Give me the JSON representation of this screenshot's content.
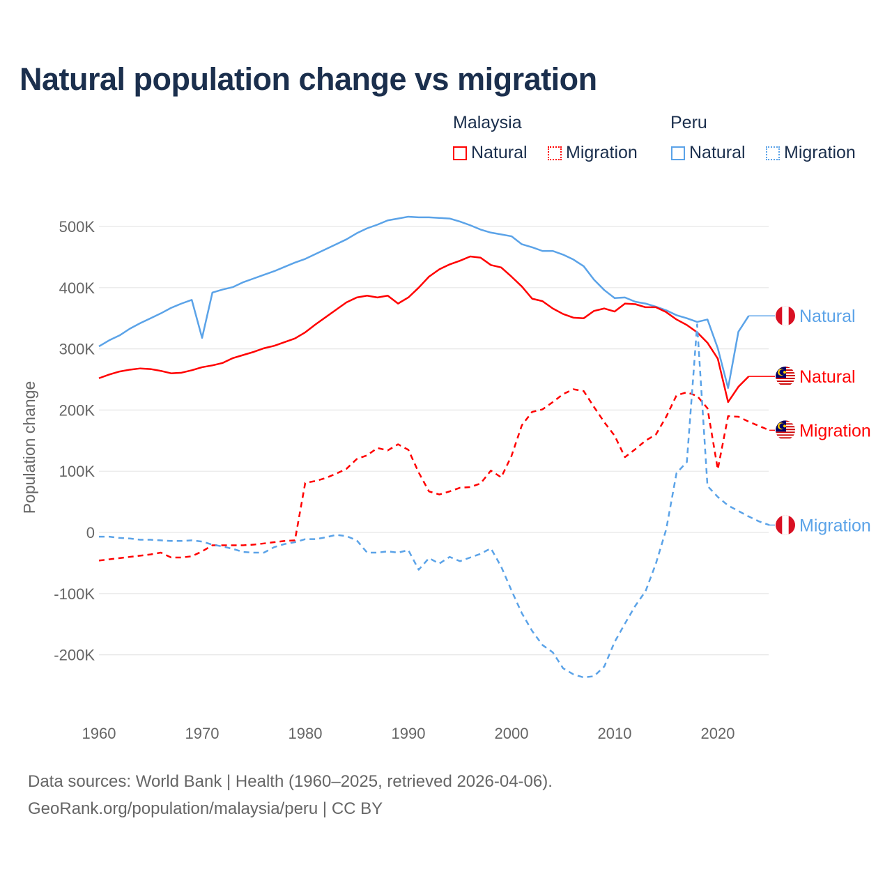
{
  "title": "Natural population change vs migration",
  "legend": {
    "groups": [
      {
        "name": "Malaysia",
        "items": [
          {
            "label": "Natural",
            "style": "solid",
            "color": "#ff0000"
          },
          {
            "label": "Migration",
            "style": "dotted",
            "color": "#ff0000"
          }
        ]
      },
      {
        "name": "Peru",
        "items": [
          {
            "label": "Natural",
            "style": "solid",
            "color": "#5ba3e8"
          },
          {
            "label": "Migration",
            "style": "dotted",
            "color": "#5ba3e8"
          }
        ]
      }
    ]
  },
  "footer": {
    "line1": "Data sources: World Bank | Health (1960–2025, retrieved 2026-04-06).",
    "line2": "GeoRank.org/population/malaysia/peru | CC BY"
  },
  "chart_data": {
    "type": "line",
    "title": "Natural population change vs migration",
    "xlabel": "",
    "ylabel": "Population change",
    "xlim": [
      1960,
      2025
    ],
    "ylim": [
      -270000,
      560000
    ],
    "grid": true,
    "legend_position": "top-right",
    "x_ticks": [
      1960,
      1970,
      1980,
      1990,
      2000,
      2010,
      2020
    ],
    "x_tick_labels": [
      "1960",
      "1970",
      "1980",
      "1990",
      "2000",
      "2010",
      "2020"
    ],
    "y_ticks": [
      500000,
      400000,
      300000,
      200000,
      100000,
      0,
      -100000,
      -200000
    ],
    "y_tick_labels": [
      "500K",
      "400K",
      "300K",
      "200K",
      "100K",
      "0",
      "-100K",
      "-200K"
    ],
    "series": [
      {
        "name": "Peru Natural",
        "end_label": "Natural",
        "country": "peru",
        "color": "#5ba3e8",
        "dashed": false,
        "start_year": 1960,
        "values": [
          304,
          314,
          322,
          333,
          342,
          350,
          358,
          367,
          374,
          380,
          318,
          392,
          397,
          401,
          409,
          415,
          421,
          427,
          434,
          441,
          447,
          455,
          463,
          471,
          479,
          489,
          497,
          503,
          510,
          513,
          516,
          515,
          515,
          514,
          513,
          508,
          502,
          495,
          490,
          487,
          484,
          471,
          466,
          460,
          460,
          454,
          446,
          435,
          413,
          396,
          383,
          384,
          377,
          374,
          369,
          363,
          355,
          350,
          344,
          348,
          301,
          236,
          328,
          354
        ]
      },
      {
        "name": "Malaysia Natural",
        "end_label": "Natural",
        "country": "malaysia",
        "color": "#ff0000",
        "dashed": false,
        "start_year": 1960,
        "values": [
          252,
          258,
          263,
          266,
          268,
          267,
          264,
          260,
          261,
          265,
          270,
          273,
          277,
          285,
          290,
          295,
          301,
          305,
          311,
          317,
          327,
          340,
          352,
          364,
          376,
          384,
          387,
          384,
          387,
          374,
          384,
          400,
          418,
          430,
          438,
          444,
          451,
          449,
          437,
          433,
          418,
          402,
          382,
          378,
          366,
          357,
          351,
          350,
          362,
          366,
          361,
          374,
          373,
          368,
          368,
          360,
          348,
          339,
          327,
          310,
          284,
          213,
          238,
          255
        ]
      },
      {
        "name": "Malaysia Migration",
        "end_label": "Migration",
        "country": "malaysia",
        "color": "#ff0000",
        "dashed": true,
        "start_year": 1960,
        "values": [
          -46,
          -44,
          -42,
          -40,
          -38,
          -36,
          -33,
          -41,
          -41,
          -39,
          -31,
          -21,
          -21,
          -21,
          -21,
          -20,
          -18,
          -16,
          -14,
          -13,
          81,
          84,
          89,
          96,
          104,
          120,
          126,
          138,
          134,
          144,
          135,
          98,
          67,
          62,
          67,
          73,
          74,
          80,
          101,
          90,
          125,
          175,
          197,
          201,
          213,
          226,
          234,
          231,
          205,
          180,
          158,
          123,
          136,
          150,
          160,
          189,
          224,
          229,
          223,
          203,
          103,
          190,
          189,
          181,
          174,
          167
        ]
      },
      {
        "name": "Peru Migration",
        "end_label": "Migration",
        "country": "peru",
        "color": "#5ba3e8",
        "dashed": true,
        "start_year": 1960,
        "values": [
          -7,
          -7,
          -9,
          -10,
          -12,
          -12,
          -13,
          -14,
          -14,
          -13,
          -15,
          -20,
          -23,
          -27,
          -32,
          -33,
          -33,
          -24,
          -19,
          -16,
          -11,
          -11,
          -8,
          -4,
          -6,
          -13,
          -33,
          -33,
          -31,
          -33,
          -29,
          -61,
          -42,
          -51,
          -40,
          -47,
          -41,
          -35,
          -26,
          -56,
          -95,
          -132,
          -161,
          -184,
          -196,
          -222,
          -232,
          -237,
          -235,
          -219,
          -179,
          -149,
          -120,
          -96,
          -51,
          5,
          97,
          115,
          340,
          76,
          58,
          44,
          35,
          26,
          18,
          12
        ]
      }
    ],
    "value_unit": "thousands"
  }
}
